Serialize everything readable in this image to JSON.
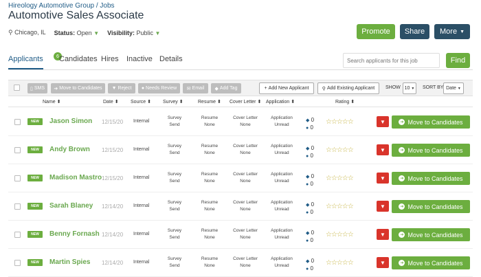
{
  "header": {
    "breadcrumb": "Hireology Automotive Group / Jobs",
    "title": "Automotive Sales Associate",
    "location": "Chicago, IL",
    "status_label": "Status:",
    "status_value": "Open",
    "visibility_label": "Visibility:",
    "visibility_value": "Public",
    "promote": "Promote",
    "share": "Share",
    "more": "More"
  },
  "tabs": [
    {
      "label": "Applicants",
      "badge": "6"
    },
    {
      "label": "Candidates"
    },
    {
      "label": "Hires"
    },
    {
      "label": "Inactive"
    },
    {
      "label": "Details"
    }
  ],
  "search": {
    "placeholder": "Search applicants for this job",
    "find": "Find"
  },
  "toolbar": {
    "sms": "SMS",
    "move": "Move to Candidates",
    "reject": "Reject",
    "needs_review": "Needs Review",
    "email": "Email",
    "add_tag": "Add Tag",
    "add_new": "Add New Applicant",
    "add_existing": "Add Existing Applicant",
    "show_label": "SHOW",
    "show_value": "10",
    "sort_label": "SORT BY",
    "sort_value": "Date"
  },
  "columns": {
    "name": "Name",
    "date": "Date",
    "source": "Source",
    "survey": "Survey",
    "resume": "Resume",
    "cover": "Cover Letter",
    "application": "Application",
    "rating": "Rating"
  },
  "row_labels": {
    "new": "NEW",
    "survey": "Survey",
    "survey_val": "Send",
    "resume": "Resume",
    "resume_val": "None",
    "cover": "Cover Letter",
    "cover_val": "None",
    "application": "Application",
    "application_val": "Unread",
    "move": "Move to Candidates"
  },
  "applicants": [
    {
      "name": "Jason Simon",
      "date": "12/15/20",
      "source": "Internal",
      "count1": "0",
      "count2": "0",
      "rating": 0
    },
    {
      "name": "Andy Brown",
      "date": "12/15/20",
      "source": "Internal",
      "count1": "0",
      "count2": "0",
      "rating": 0
    },
    {
      "name": "Madison Mastro",
      "date": "12/15/20",
      "source": "Internal",
      "count1": "0",
      "count2": "0",
      "rating": 0
    },
    {
      "name": "Sarah Blaney",
      "date": "12/14/20",
      "source": "Internal",
      "count1": "0",
      "count2": "0",
      "rating": 0
    },
    {
      "name": "Benny Fornash",
      "date": "12/14/20",
      "source": "Internal",
      "count1": "0",
      "count2": "0",
      "rating": 0
    },
    {
      "name": "Martin Spies",
      "date": "12/14/20",
      "source": "Internal",
      "count1": "0",
      "count2": "0",
      "rating": 0
    }
  ],
  "colors": {
    "accent_green": "#6cae3f",
    "navy": "#2b4f66",
    "reject_red": "#d9342b"
  }
}
